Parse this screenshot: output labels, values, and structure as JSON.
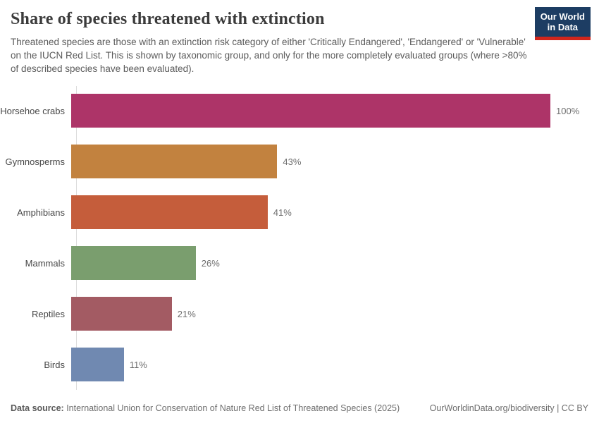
{
  "header": {
    "title": "Share of species threatened with extinction",
    "subtitle": "Threatened species are those with an extinction risk category of either 'Critically Endangered', 'Endangered' or 'Vulnerable' on the IUCN Red List. This is shown by taxonomic group, and only for the more completely evaluated groups (where >80% of described species have been evaluated).",
    "logo": {
      "line1": "Our World",
      "line2": "in Data",
      "bg_color": "#1d3d63",
      "accent_color": "#d1261c"
    }
  },
  "chart_data": {
    "type": "bar",
    "orientation": "horizontal",
    "title": "Share of species threatened with extinction",
    "categories": [
      "Horsehoe crabs",
      "Gymnosperms",
      "Amphibians",
      "Mammals",
      "Reptiles",
      "Birds"
    ],
    "values": [
      100,
      43,
      41,
      26,
      21,
      11
    ],
    "value_labels": [
      "100%",
      "43%",
      "41%",
      "26%",
      "21%",
      "11%"
    ],
    "colors": [
      "#ad3468",
      "#c2823f",
      "#c55d3b",
      "#7a9e6e",
      "#a35b63",
      "#7089b1"
    ],
    "xlim": [
      0,
      100
    ],
    "grid": false,
    "legend": "none",
    "value_label_position": "outside-end",
    "axis_color": "#dcdcdc"
  },
  "footer": {
    "source_label": "Data source:",
    "source_text": " International Union for Conservation of Nature Red List of Threatened Species (2025)",
    "site_text": "OurWorldinData.org/biodiversity | CC BY"
  }
}
